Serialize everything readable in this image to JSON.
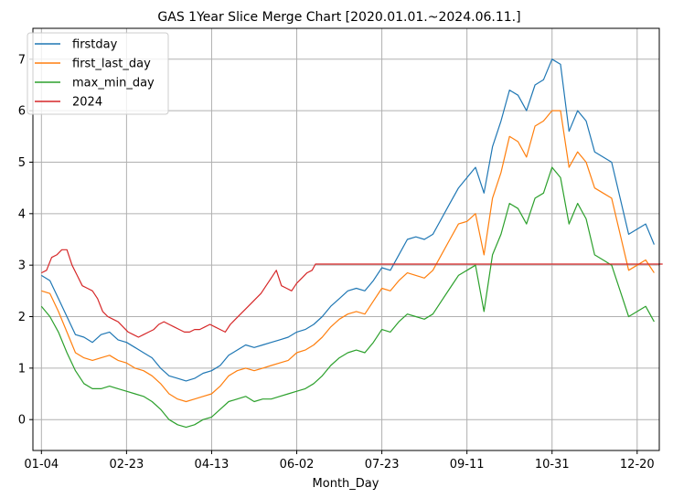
{
  "chart_data": {
    "type": "line",
    "title": "GAS 1Year Slice Merge Chart [2020.01.01.~2024.06.11.]",
    "xlabel": "Month_Day",
    "ylabel": "",
    "xlim": [
      -5,
      363
    ],
    "ylim": [
      -0.6,
      7.6
    ],
    "grid": true,
    "legend_position": "top-left",
    "x_ticks": [
      {
        "x": 0,
        "label": "01-04"
      },
      {
        "x": 50,
        "label": "02-23"
      },
      {
        "x": 100,
        "label": "04-13"
      },
      {
        "x": 150,
        "label": "06-02"
      },
      {
        "x": 200,
        "label": "07-23"
      },
      {
        "x": 250,
        "label": "09-11"
      },
      {
        "x": 300,
        "label": "10-31"
      },
      {
        "x": 350,
        "label": "12-20"
      }
    ],
    "y_ticks": [
      0,
      1,
      2,
      3,
      4,
      5,
      6,
      7
    ],
    "series": [
      {
        "name": "firstday",
        "color": "#1f77b4",
        "points": [
          [
            0,
            2.8
          ],
          [
            5,
            2.7
          ],
          [
            10,
            2.35
          ],
          [
            15,
            2.0
          ],
          [
            20,
            1.65
          ],
          [
            25,
            1.6
          ],
          [
            30,
            1.5
          ],
          [
            35,
            1.65
          ],
          [
            40,
            1.7
          ],
          [
            45,
            1.55
          ],
          [
            50,
            1.5
          ],
          [
            55,
            1.4
          ],
          [
            60,
            1.3
          ],
          [
            65,
            1.2
          ],
          [
            70,
            1.0
          ],
          [
            75,
            0.85
          ],
          [
            80,
            0.8
          ],
          [
            85,
            0.75
          ],
          [
            90,
            0.8
          ],
          [
            95,
            0.9
          ],
          [
            100,
            0.95
          ],
          [
            105,
            1.05
          ],
          [
            110,
            1.25
          ],
          [
            115,
            1.35
          ],
          [
            120,
            1.45
          ],
          [
            125,
            1.4
          ],
          [
            130,
            1.45
          ],
          [
            135,
            1.5
          ],
          [
            140,
            1.55
          ],
          [
            145,
            1.6
          ],
          [
            150,
            1.7
          ],
          [
            155,
            1.75
          ],
          [
            160,
            1.85
          ],
          [
            165,
            2.0
          ],
          [
            170,
            2.2
          ],
          [
            175,
            2.35
          ],
          [
            180,
            2.5
          ],
          [
            185,
            2.55
          ],
          [
            190,
            2.5
          ],
          [
            195,
            2.7
          ],
          [
            200,
            2.95
          ],
          [
            205,
            2.9
          ],
          [
            210,
            3.2
          ],
          [
            215,
            3.5
          ],
          [
            220,
            3.55
          ],
          [
            225,
            3.5
          ],
          [
            230,
            3.6
          ],
          [
            235,
            3.9
          ],
          [
            240,
            4.2
          ],
          [
            245,
            4.5
          ],
          [
            250,
            4.7
          ],
          [
            255,
            4.9
          ],
          [
            260,
            4.4
          ],
          [
            265,
            5.3
          ],
          [
            270,
            5.8
          ],
          [
            275,
            6.4
          ],
          [
            280,
            6.3
          ],
          [
            285,
            6.0
          ],
          [
            290,
            6.5
          ],
          [
            295,
            6.6
          ],
          [
            300,
            7.0
          ],
          [
            305,
            6.9
          ],
          [
            310,
            5.6
          ],
          [
            315,
            6.0
          ],
          [
            320,
            5.8
          ],
          [
            325,
            5.2
          ],
          [
            330,
            5.1
          ],
          [
            335,
            5.0
          ],
          [
            340,
            4.3
          ],
          [
            345,
            3.6
          ],
          [
            350,
            3.7
          ],
          [
            355,
            3.8
          ],
          [
            360,
            3.4
          ]
        ]
      },
      {
        "name": "first_last_day",
        "color": "#ff7f0e",
        "points": [
          [
            0,
            2.5
          ],
          [
            5,
            2.45
          ],
          [
            10,
            2.1
          ],
          [
            15,
            1.7
          ],
          [
            20,
            1.3
          ],
          [
            25,
            1.2
          ],
          [
            30,
            1.15
          ],
          [
            35,
            1.2
          ],
          [
            40,
            1.25
          ],
          [
            45,
            1.15
          ],
          [
            50,
            1.1
          ],
          [
            55,
            1.0
          ],
          [
            60,
            0.95
          ],
          [
            65,
            0.85
          ],
          [
            70,
            0.7
          ],
          [
            75,
            0.5
          ],
          [
            80,
            0.4
          ],
          [
            85,
            0.35
          ],
          [
            90,
            0.4
          ],
          [
            95,
            0.45
          ],
          [
            100,
            0.5
          ],
          [
            105,
            0.65
          ],
          [
            110,
            0.85
          ],
          [
            115,
            0.95
          ],
          [
            120,
            1.0
          ],
          [
            125,
            0.95
          ],
          [
            130,
            1.0
          ],
          [
            135,
            1.05
          ],
          [
            140,
            1.1
          ],
          [
            145,
            1.15
          ],
          [
            150,
            1.3
          ],
          [
            155,
            1.35
          ],
          [
            160,
            1.45
          ],
          [
            165,
            1.6
          ],
          [
            170,
            1.8
          ],
          [
            175,
            1.95
          ],
          [
            180,
            2.05
          ],
          [
            185,
            2.1
          ],
          [
            190,
            2.05
          ],
          [
            195,
            2.3
          ],
          [
            200,
            2.55
          ],
          [
            205,
            2.5
          ],
          [
            210,
            2.7
          ],
          [
            215,
            2.85
          ],
          [
            220,
            2.8
          ],
          [
            225,
            2.75
          ],
          [
            230,
            2.9
          ],
          [
            235,
            3.2
          ],
          [
            240,
            3.5
          ],
          [
            245,
            3.8
          ],
          [
            250,
            3.85
          ],
          [
            255,
            4.0
          ],
          [
            260,
            3.2
          ],
          [
            265,
            4.3
          ],
          [
            270,
            4.8
          ],
          [
            275,
            5.5
          ],
          [
            280,
            5.4
          ],
          [
            285,
            5.1
          ],
          [
            290,
            5.7
          ],
          [
            295,
            5.8
          ],
          [
            300,
            6.0
          ],
          [
            305,
            6.0
          ],
          [
            310,
            4.9
          ],
          [
            315,
            5.2
          ],
          [
            320,
            5.0
          ],
          [
            325,
            4.5
          ],
          [
            330,
            4.4
          ],
          [
            335,
            4.3
          ],
          [
            340,
            3.6
          ],
          [
            345,
            2.9
          ],
          [
            350,
            3.0
          ],
          [
            355,
            3.1
          ],
          [
            360,
            2.85
          ]
        ]
      },
      {
        "name": "max_min_day",
        "color": "#2ca02c",
        "points": [
          [
            0,
            2.2
          ],
          [
            5,
            2.0
          ],
          [
            10,
            1.7
          ],
          [
            15,
            1.3
          ],
          [
            20,
            0.95
          ],
          [
            25,
            0.7
          ],
          [
            30,
            0.6
          ],
          [
            35,
            0.6
          ],
          [
            40,
            0.65
          ],
          [
            45,
            0.6
          ],
          [
            50,
            0.55
          ],
          [
            55,
            0.5
          ],
          [
            60,
            0.45
          ],
          [
            65,
            0.35
          ],
          [
            70,
            0.2
          ],
          [
            75,
            0.0
          ],
          [
            80,
            -0.1
          ],
          [
            85,
            -0.15
          ],
          [
            90,
            -0.1
          ],
          [
            95,
            0.0
          ],
          [
            100,
            0.05
          ],
          [
            105,
            0.2
          ],
          [
            110,
            0.35
          ],
          [
            115,
            0.4
          ],
          [
            120,
            0.45
          ],
          [
            125,
            0.35
          ],
          [
            130,
            0.4
          ],
          [
            135,
            0.4
          ],
          [
            140,
            0.45
          ],
          [
            145,
            0.5
          ],
          [
            150,
            0.55
          ],
          [
            155,
            0.6
          ],
          [
            160,
            0.7
          ],
          [
            165,
            0.85
          ],
          [
            170,
            1.05
          ],
          [
            175,
            1.2
          ],
          [
            180,
            1.3
          ],
          [
            185,
            1.35
          ],
          [
            190,
            1.3
          ],
          [
            195,
            1.5
          ],
          [
            200,
            1.75
          ],
          [
            205,
            1.7
          ],
          [
            210,
            1.9
          ],
          [
            215,
            2.05
          ],
          [
            220,
            2.0
          ],
          [
            225,
            1.95
          ],
          [
            230,
            2.05
          ],
          [
            235,
            2.3
          ],
          [
            240,
            2.55
          ],
          [
            245,
            2.8
          ],
          [
            250,
            2.9
          ],
          [
            255,
            3.0
          ],
          [
            260,
            2.1
          ],
          [
            265,
            3.2
          ],
          [
            270,
            3.6
          ],
          [
            275,
            4.2
          ],
          [
            280,
            4.1
          ],
          [
            285,
            3.8
          ],
          [
            290,
            4.3
          ],
          [
            295,
            4.4
          ],
          [
            300,
            4.9
          ],
          [
            305,
            4.7
          ],
          [
            310,
            3.8
          ],
          [
            315,
            4.2
          ],
          [
            320,
            3.9
          ],
          [
            325,
            3.2
          ],
          [
            330,
            3.1
          ],
          [
            335,
            3.0
          ],
          [
            340,
            2.5
          ],
          [
            345,
            2.0
          ],
          [
            350,
            2.1
          ],
          [
            355,
            2.2
          ],
          [
            360,
            1.9
          ]
        ]
      },
      {
        "name": "2024",
        "color": "#d62728",
        "points": [
          [
            0,
            2.85
          ],
          [
            3,
            2.9
          ],
          [
            6,
            3.15
          ],
          [
            9,
            3.2
          ],
          [
            12,
            3.3
          ],
          [
            15,
            3.3
          ],
          [
            18,
            3.0
          ],
          [
            21,
            2.8
          ],
          [
            24,
            2.6
          ],
          [
            27,
            2.55
          ],
          [
            30,
            2.5
          ],
          [
            33,
            2.35
          ],
          [
            36,
            2.1
          ],
          [
            39,
            2.0
          ],
          [
            42,
            1.95
          ],
          [
            45,
            1.9
          ],
          [
            48,
            1.8
          ],
          [
            51,
            1.7
          ],
          [
            54,
            1.65
          ],
          [
            57,
            1.6
          ],
          [
            60,
            1.65
          ],
          [
            63,
            1.7
          ],
          [
            66,
            1.75
          ],
          [
            69,
            1.85
          ],
          [
            72,
            1.9
          ],
          [
            75,
            1.85
          ],
          [
            78,
            1.8
          ],
          [
            81,
            1.75
          ],
          [
            84,
            1.7
          ],
          [
            87,
            1.7
          ],
          [
            90,
            1.75
          ],
          [
            93,
            1.75
          ],
          [
            96,
            1.8
          ],
          [
            99,
            1.85
          ],
          [
            102,
            1.8
          ],
          [
            105,
            1.75
          ],
          [
            108,
            1.7
          ],
          [
            111,
            1.85
          ],
          [
            114,
            1.95
          ],
          [
            117,
            2.05
          ],
          [
            120,
            2.15
          ],
          [
            123,
            2.25
          ],
          [
            126,
            2.35
          ],
          [
            129,
            2.45
          ],
          [
            132,
            2.6
          ],
          [
            135,
            2.75
          ],
          [
            138,
            2.9
          ],
          [
            141,
            2.6
          ],
          [
            144,
            2.55
          ],
          [
            147,
            2.5
          ],
          [
            150,
            2.65
          ],
          [
            153,
            2.75
          ],
          [
            156,
            2.85
          ],
          [
            159,
            2.9
          ],
          [
            161,
            3.02
          ],
          [
            365,
            3.02
          ]
        ]
      }
    ]
  }
}
